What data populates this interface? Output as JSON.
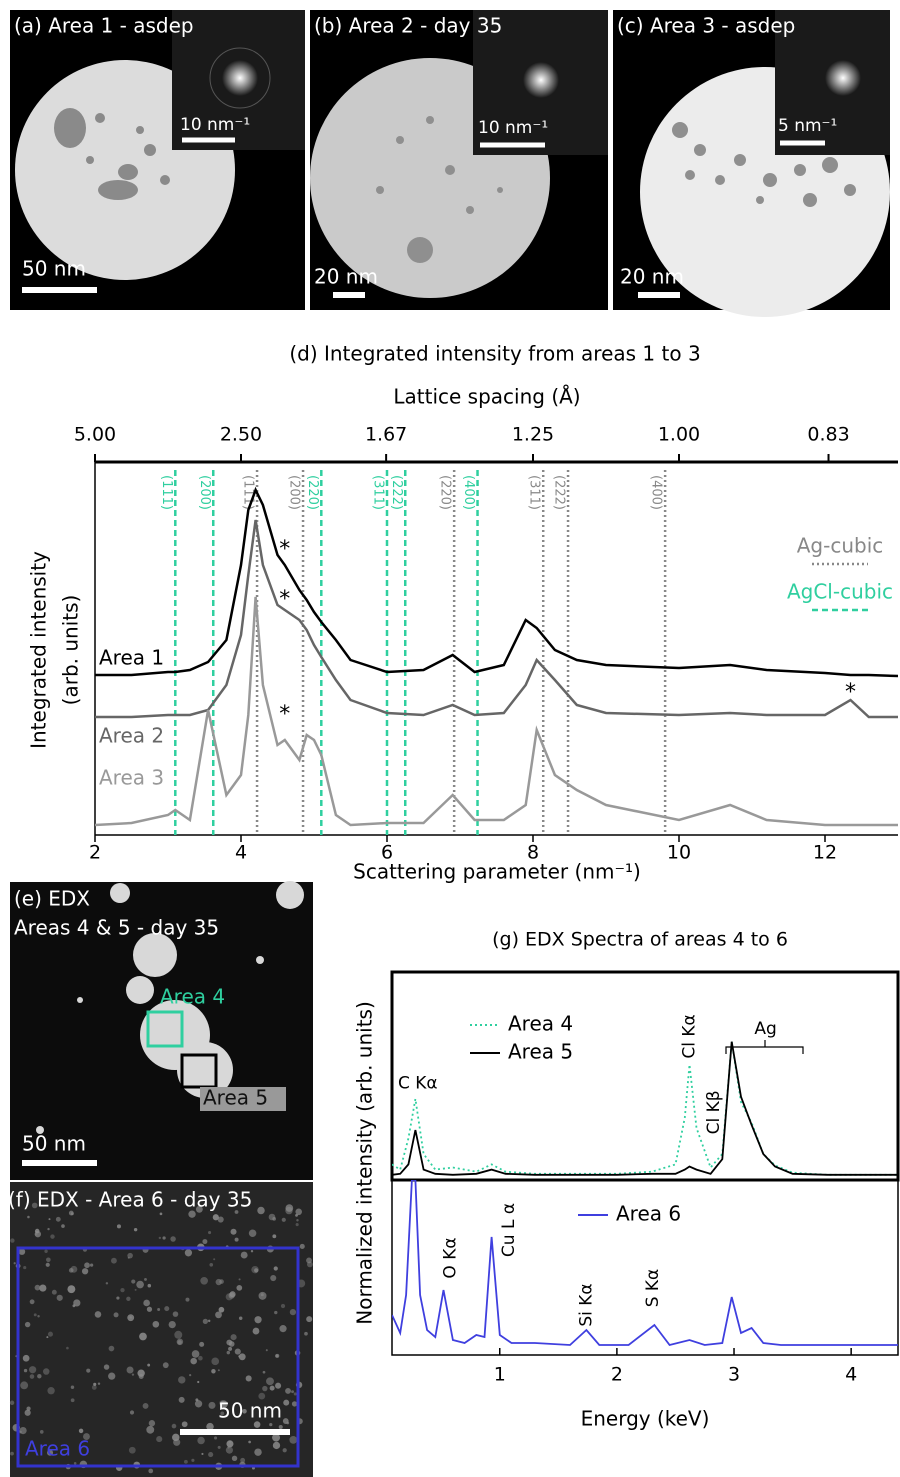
{
  "images": [
    {
      "label": "(a) Area 1 -  asdep",
      "inset_scale": "10 nm⁻¹",
      "scale": "50 nm"
    },
    {
      "label": "(b) Area 2 -  day 35",
      "inset_scale": "10 nm⁻¹",
      "scale": "20 nm"
    },
    {
      "label": "(c) Area 3 -  asdep",
      "inset_scale": "5 nm⁻¹",
      "scale": "20 nm"
    }
  ],
  "edx_images": {
    "e": {
      "label": "(e) EDX",
      "subtitle": "Areas 4 & 5 - day 35",
      "box1": "Area 4",
      "box2": "Area 5",
      "scale": "50 nm"
    },
    "f": {
      "label": "(f) EDX - Area 6 - day 35",
      "box": "Area 6",
      "scale": "50 nm"
    }
  },
  "chart_data": [
    {
      "type": "line",
      "title": "(d) Integrated intensity from areas 1 to 3",
      "x2label": "Lattice spacing (Å)",
      "xlabel": "Scattering parameter (nm⁻¹)",
      "ylabel": [
        "Integrated intensity",
        "(arb. units)"
      ],
      "xlim": [
        2,
        13
      ],
      "xticks": [
        2,
        4,
        6,
        8,
        10,
        12
      ],
      "x2ticks": [
        {
          "value": 5,
          "label": "5.00"
        },
        {
          "value": 2.5,
          "label": "2.50"
        },
        1.67,
        1.25,
        {
          "value": 1,
          "label": "1.00"
        },
        0.83
      ],
      "ylim": [
        0,
        373
      ],
      "x": [
        2,
        2.5,
        3,
        3.1,
        3.3,
        3.55,
        3.8,
        4,
        4.1,
        4.2,
        4.3,
        4.5,
        4.6,
        4.8,
        4.9,
        5,
        5.1,
        5.3,
        5.5,
        6,
        6.5,
        6.9,
        7.2,
        7.6,
        7.9,
        8.05,
        8.3,
        8.6,
        9,
        10,
        10.7,
        11.2,
        12,
        12.35,
        12.6,
        13
      ],
      "series": [
        {
          "name": "Area 1",
          "color": "#000000",
          "values": [
            160,
            160,
            163,
            163,
            165,
            173,
            195,
            270,
            325,
            345,
            330,
            280,
            270,
            245,
            235,
            223,
            213,
            195,
            175,
            163,
            165,
            180,
            163,
            170,
            215,
            207,
            185,
            175,
            170,
            167,
            170,
            165,
            162,
            160,
            160,
            159
          ]
        },
        {
          "name": "Area 2",
          "color": "#666666",
          "values": [
            118,
            118,
            120,
            120,
            120,
            125,
            150,
            200,
            260,
            315,
            270,
            230,
            225,
            215,
            205,
            190,
            178,
            155,
            135,
            122,
            120,
            130,
            120,
            122,
            150,
            175,
            155,
            130,
            122,
            120,
            122,
            120,
            120,
            135,
            118,
            118
          ]
        },
        {
          "name": "Area 3",
          "color": "#999999",
          "values": [
            10,
            12,
            20,
            25,
            15,
            125,
            40,
            60,
            120,
            238,
            150,
            90,
            95,
            75,
            100,
            95,
            80,
            20,
            10,
            12,
            12,
            40,
            15,
            15,
            30,
            105,
            60,
            45,
            30,
            15,
            30,
            15,
            10,
            10,
            10,
            10
          ]
        }
      ],
      "reference_lines": [
        {
          "name": "Ag-cubic",
          "color": "#888888",
          "style": "dotted",
          "lines": [
            {
              "x": 4.22,
              "label": "(111)"
            },
            {
              "x": 4.85,
              "label": "(200)"
            },
            {
              "x": 6.92,
              "label": "(220)"
            },
            {
              "x": 8.14,
              "label": "(311)"
            },
            {
              "x": 8.48,
              "label": "(222)"
            },
            {
              "x": 9.81,
              "label": "(400)"
            }
          ]
        },
        {
          "name": "AgCl-cubic",
          "color": "#2fcf9f",
          "style": "dashed",
          "lines": [
            {
              "x": 3.1,
              "label": "(111)"
            },
            {
              "x": 3.62,
              "label": "(200)"
            },
            {
              "x": 5.1,
              "label": "(220)"
            },
            {
              "x": 6.0,
              "label": "(311)"
            },
            {
              "x": 6.25,
              "label": "(222)"
            },
            {
              "x": 7.24,
              "label": "(400)"
            }
          ]
        }
      ],
      "annotations": [
        {
          "text": "*",
          "x": 4.6,
          "y": 285
        },
        {
          "text": "*",
          "x": 4.6,
          "y": 235
        },
        {
          "text": "*",
          "x": 4.6,
          "y": 120
        },
        {
          "text": "*",
          "x": 12.35,
          "y": 142
        }
      ]
    },
    {
      "type": "line",
      "title": "(g) EDX Spectra of areas 4 to 6",
      "xlabel": "Energy (keV)",
      "ylabel": "Normalized intensity (arb. units)",
      "xlim": [
        0.08,
        4.4
      ],
      "xticks": [
        1,
        2,
        3,
        4
      ],
      "panels": [
        {
          "ylim": [
            0,
            200
          ],
          "x": [
            0.08,
            0.15,
            0.22,
            0.28,
            0.35,
            0.45,
            0.6,
            0.8,
            0.93,
            1.05,
            1.3,
            1.6,
            2,
            2.3,
            2.5,
            2.58,
            2.62,
            2.68,
            2.8,
            2.9,
            2.98,
            3.06,
            3.15,
            3.25,
            3.35,
            3.5,
            3.8,
            4.1,
            4.4
          ],
          "series": [
            {
              "name": "Area 4",
              "color": "#2fcf9f",
              "dash": "dotted",
              "values": [
                15,
                10,
                40,
                78,
                25,
                10,
                12,
                8,
                15,
                8,
                6,
                6,
                6,
                8,
                15,
                60,
                111,
                50,
                12,
                25,
                133,
                75,
                55,
                25,
                14,
                7,
                5,
                5,
                5
              ]
            },
            {
              "name": "Area 5",
              "color": "#000000",
              "dash": "solid",
              "values": [
                5,
                6,
                15,
                48,
                10,
                6,
                5,
                6,
                10,
                6,
                5,
                5,
                5,
                6,
                6,
                10,
                13,
                10,
                6,
                20,
                133,
                80,
                53,
                25,
                13,
                6,
                5,
                5,
                5
              ]
            }
          ],
          "annotations": [
            {
              "text": "C Kα",
              "x": 0.3,
              "y": 93,
              "rotated": false
            },
            {
              "text": "Cl Kα",
              "x": 2.62,
              "y": 138,
              "rotated": true
            },
            {
              "text": "Cl Kβ",
              "x": 2.83,
              "y": 65,
              "rotated": true
            },
            {
              "text": "Ag",
              "x": 3.27,
              "y": 145,
              "rotated": false
            }
          ]
        },
        {
          "ylim": [
            0,
            175
          ],
          "x": [
            0.08,
            0.15,
            0.2,
            0.25,
            0.28,
            0.32,
            0.38,
            0.45,
            0.52,
            0.6,
            0.7,
            0.8,
            0.87,
            0.93,
            1,
            1.1,
            1.3,
            1.6,
            1.74,
            1.85,
            2.1,
            2.32,
            2.45,
            2.62,
            2.75,
            2.9,
            2.98,
            3.06,
            3.15,
            3.25,
            3.4,
            3.8,
            4.4
          ],
          "series": [
            {
              "name": "Area 6",
              "color": "#3f3fdf",
              "dash": "solid",
              "values": [
                40,
                22,
                60,
                175,
                175,
                60,
                25,
                18,
                65,
                15,
                12,
                20,
                18,
                118,
                20,
                12,
                12,
                10,
                25,
                10,
                10,
                30,
                10,
                15,
                10,
                12,
                58,
                22,
                27,
                12,
                10,
                10,
                10
              ]
            }
          ],
          "annotations": [
            {
              "text": "O Kα",
              "x": 0.58,
              "y": 97,
              "rotated": true
            },
            {
              "text": "Cu L α",
              "x": 1.08,
              "y": 125,
              "rotated": true
            },
            {
              "text": "Si Kα",
              "x": 1.74,
              "y": 50,
              "rotated": true
            },
            {
              "text": "S Kα",
              "x": 2.31,
              "y": 67,
              "rotated": true
            }
          ]
        }
      ]
    }
  ]
}
